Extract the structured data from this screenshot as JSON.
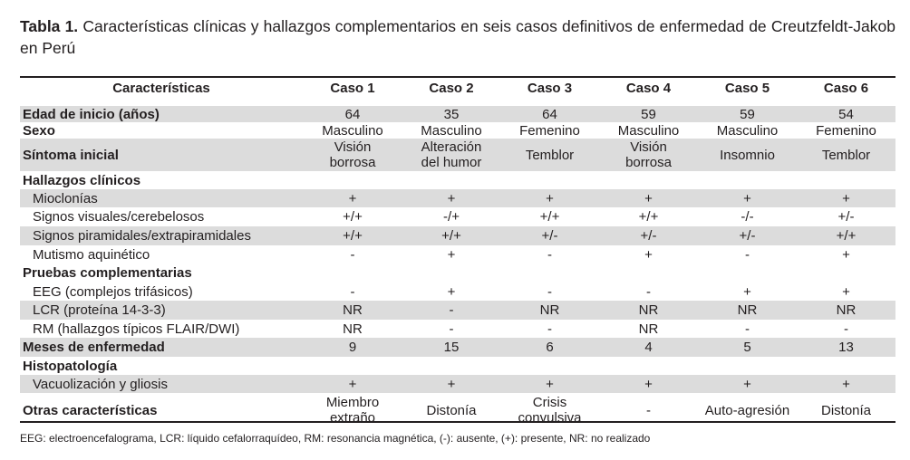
{
  "caption": {
    "label": "Tabla 1.",
    "text": "Características clínicas y hallazgos complementarios en seis casos definitivos de enfermedad de Creutzfeldt-Jakob en Perú"
  },
  "table": {
    "headers": [
      "Características",
      "Caso 1",
      "Caso 2",
      "Caso 3",
      "Caso 4",
      "Caso 5",
      "Caso 6"
    ],
    "rows": [
      {
        "label": "Edad de inicio (años)",
        "values": [
          "64",
          "35",
          "64",
          "59",
          "59",
          "54"
        ]
      },
      {
        "label": "Sexo",
        "values": [
          "Masculino",
          "Masculino",
          "Femenino",
          "Masculino",
          "Masculino",
          "Femenino"
        ]
      },
      {
        "label": "Síntoma inicial",
        "values": [
          [
            "Visión",
            "borrosa"
          ],
          [
            "Alteración",
            "del humor"
          ],
          [
            "Temblor"
          ],
          [
            "Visión",
            "borrosa"
          ],
          [
            "Insomnio"
          ],
          [
            "Temblor"
          ]
        ]
      },
      {
        "label": "Hallazgos clínicos"
      },
      {
        "label": "Mioclonías",
        "values": [
          "+",
          "+",
          "+",
          "+",
          "+",
          "+"
        ]
      },
      {
        "label": "Signos visuales/cerebelosos",
        "values": [
          "+/+",
          "-/+",
          "+/+",
          "+/+",
          "-/-",
          "+/-"
        ]
      },
      {
        "label": "Signos piramidales/extrapiramidales",
        "values": [
          "+/+",
          "+/+",
          "+/-",
          "+/-",
          "+/-",
          "+/+"
        ]
      },
      {
        "label": "Mutismo aquinético",
        "values": [
          "-",
          "+",
          "-",
          "+",
          "-",
          "+"
        ]
      },
      {
        "label": "Pruebas complementarias"
      },
      {
        "label": "EEG (complejos trifásicos)",
        "values": [
          "-",
          "+",
          "-",
          "-",
          "+",
          "+"
        ]
      },
      {
        "label": "LCR (proteína 14-3-3)",
        "values": [
          "NR",
          "-",
          "NR",
          "NR",
          "NR",
          "NR"
        ]
      },
      {
        "label": "RM (hallazgos típicos FLAIR/DWI)",
        "values": [
          "NR",
          "-",
          "-",
          "NR",
          "-",
          "-"
        ]
      },
      {
        "label": "Meses de enfermedad",
        "values": [
          "9",
          "15",
          "6",
          "4",
          "5",
          "13"
        ]
      },
      {
        "label": "Histopatología"
      },
      {
        "label": "Vacuolización y gliosis",
        "values": [
          "+",
          "+",
          "+",
          "+",
          "+",
          "+"
        ]
      },
      {
        "label": "Otras características",
        "values": [
          [
            "Miembro",
            "extraño"
          ],
          [
            "Distonía"
          ],
          [
            "Crisis",
            "convulsiva"
          ],
          [
            "-"
          ],
          [
            "Auto-agresión"
          ],
          [
            "Distonía"
          ]
        ]
      }
    ]
  },
  "footnote": "EEG: electroencefalograma, LCR: líquido cefalorraquídeo, RM: resonancia magnética, (-): ausente, (+): presente, NR: no realizado"
}
